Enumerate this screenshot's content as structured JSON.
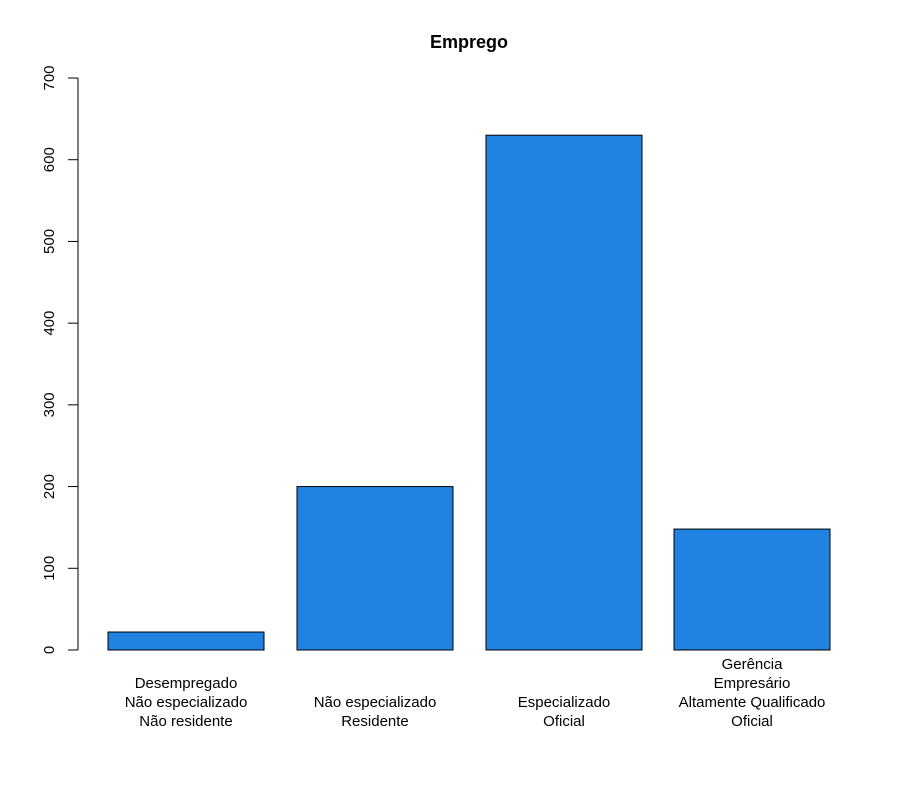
{
  "chart_data": {
    "type": "bar",
    "title": "Emprego",
    "xlabel": "",
    "ylabel": "",
    "ylim": [
      0,
      700
    ],
    "yticks": [
      0,
      100,
      200,
      300,
      400,
      500,
      600,
      700
    ],
    "grid": false,
    "bar_color": "#2183e1",
    "categories": [
      [
        "Desempregado",
        "Não especializado",
        "Não residente"
      ],
      [
        "Não especializado",
        "Residente"
      ],
      [
        "Especializado",
        "Oficial"
      ],
      [
        "Gerência",
        "Empresário",
        "Altamente Qualificado",
        "Oficial"
      ]
    ],
    "values": [
      22,
      200,
      630,
      148
    ]
  }
}
